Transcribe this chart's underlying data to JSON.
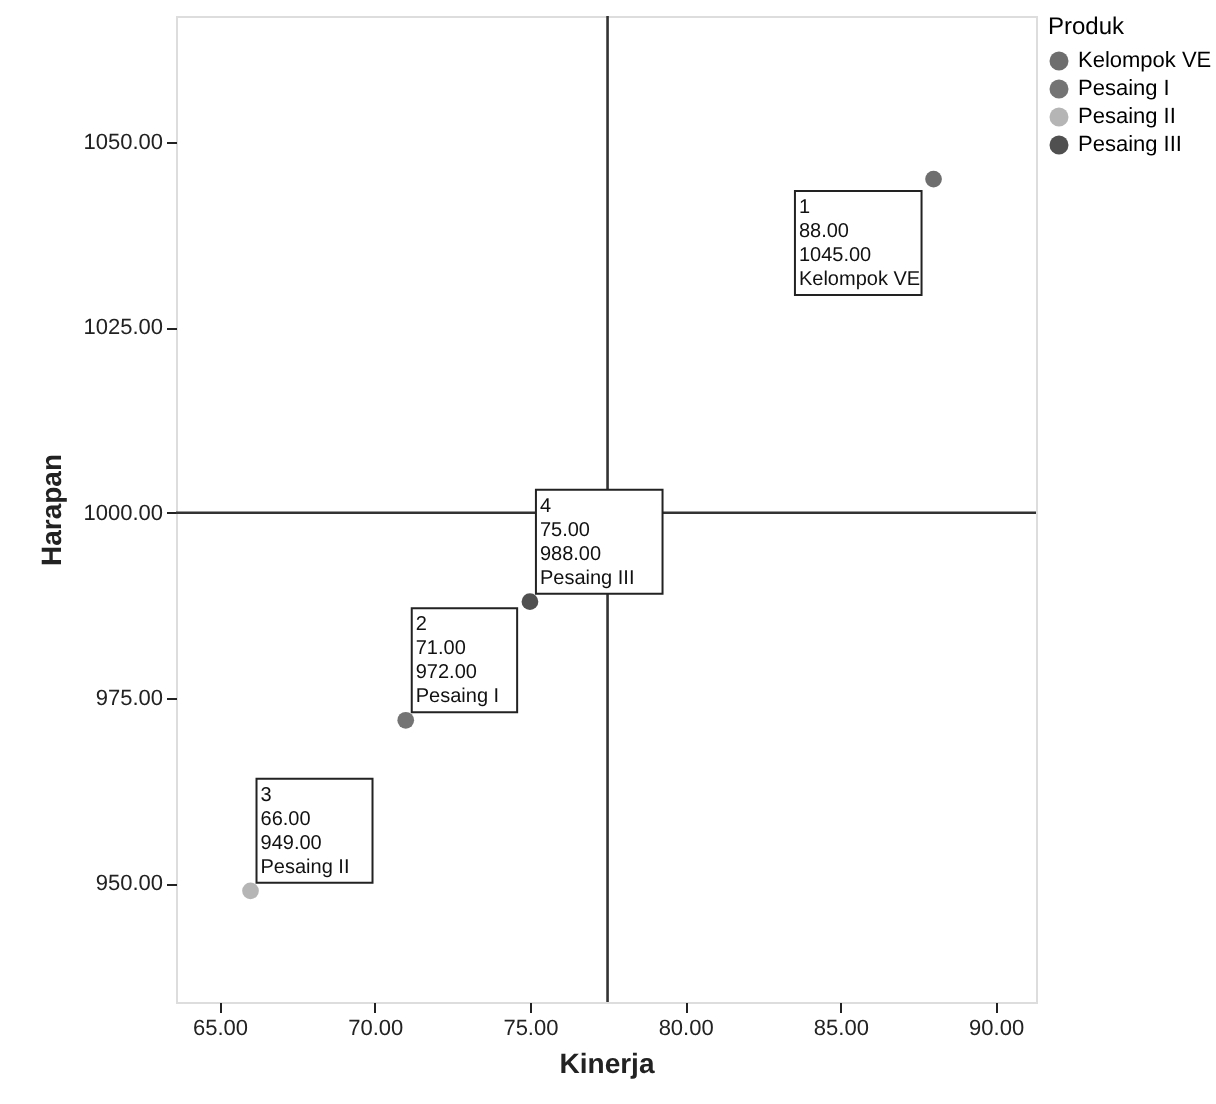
{
  "chart_data": {
    "type": "scatter",
    "xlabel": "Kinerja",
    "ylabel": "Harapan",
    "legend_title": "Produk",
    "legend": "top right",
    "marker": "circle",
    "grid": false,
    "xlim": [
      63.6,
      91.3
    ],
    "ylim": [
      934,
      1067
    ],
    "xticks": [
      {
        "value": 65,
        "label": "65.00"
      },
      {
        "value": 70,
        "label": "70.00"
      },
      {
        "value": 75,
        "label": "75.00"
      },
      {
        "value": 80,
        "label": "80.00"
      },
      {
        "value": 85,
        "label": "85.00"
      },
      {
        "value": 90,
        "label": "90.00"
      }
    ],
    "yticks": [
      {
        "value": 950,
        "label": "950.00"
      },
      {
        "value": 975,
        "label": "975.00"
      },
      {
        "value": 1000,
        "label": "1000.00"
      },
      {
        "value": 1025,
        "label": "1025.00"
      },
      {
        "value": 1050,
        "label": "1050.00"
      }
    ],
    "series": [
      {
        "name": "Kelompok VE",
        "color": "#6e6e6e",
        "x": [
          88
        ],
        "values": [
          1045
        ]
      },
      {
        "name": "Pesaing I",
        "color": "#747474",
        "x": [
          71
        ],
        "values": [
          972
        ]
      },
      {
        "name": "Pesaing II",
        "color": "#b5b5b5",
        "x": [
          66
        ],
        "values": [
          949
        ]
      },
      {
        "name": "Pesaing III",
        "color": "#505050",
        "x": [
          75
        ],
        "values": [
          988
        ]
      }
    ],
    "ref_lines": [
      {
        "axis": "x",
        "value": 77.5,
        "color": "#333333"
      },
      {
        "axis": "y",
        "value": 1000,
        "color": "#333333"
      }
    ],
    "annotations": [
      {
        "text": "1\n88.00\n1045.00\nKelompok VE",
        "x": 88,
        "y": 1045
      },
      {
        "text": "2\n71.00\n972.00\nPesaing I",
        "x": 71,
        "y": 972
      },
      {
        "text": "3\n66.00\n949.00\nPesaing II",
        "x": 66,
        "y": 949
      },
      {
        "text": "4\n75.00\n988.00\nPesaing III",
        "x": 75,
        "y": 988
      }
    ]
  }
}
